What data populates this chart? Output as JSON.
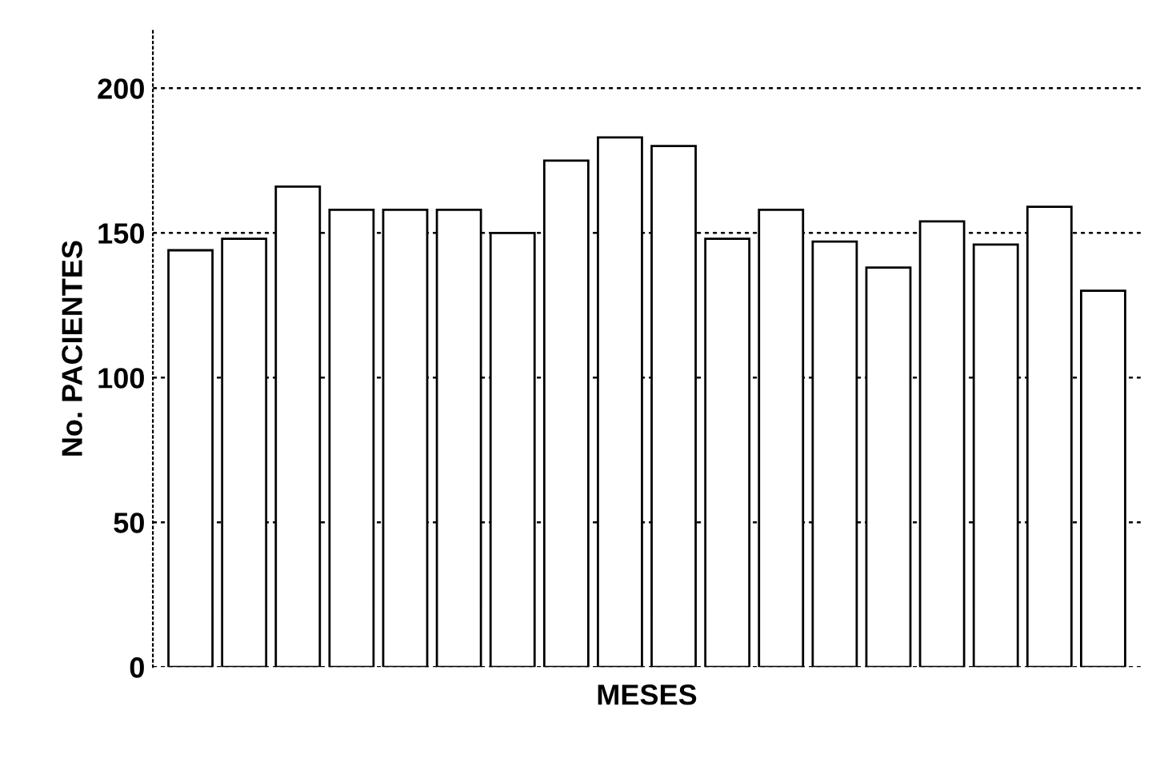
{
  "chart_data": {
    "type": "bar",
    "xlabel": "MESES",
    "ylabel": "No. PACIENTES",
    "categories": [
      null,
      null,
      null,
      null,
      null,
      null,
      null,
      null,
      null,
      null,
      null,
      null,
      null,
      null,
      null,
      null,
      null,
      null
    ],
    "values": [
      144,
      148,
      166,
      158,
      158,
      158,
      150,
      175,
      183,
      180,
      148,
      158,
      147,
      138,
      154,
      146,
      159,
      130
    ],
    "color": "#ffffff",
    "ylim": [
      0,
      220
    ],
    "yticks": [
      0,
      50,
      100,
      150,
      200
    ],
    "grid": "y"
  }
}
